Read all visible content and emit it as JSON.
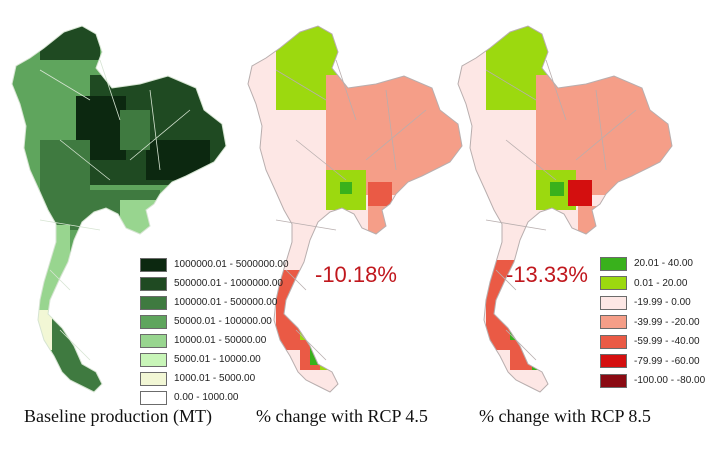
{
  "maps": [
    {
      "id": "baseline",
      "caption": "Baseline production (MT)"
    },
    {
      "id": "rcp45",
      "caption": "% change with RCP 4.5",
      "overall_change": "-10.18%"
    },
    {
      "id": "rcp85",
      "caption": "% change with RCP 8.5",
      "overall_change": "-13.33%"
    }
  ],
  "baseline_legend": [
    {
      "label": "1000000.01 - 5000000.00",
      "color": "#0c2810"
    },
    {
      "label": "500000.01 - 1000000.00",
      "color": "#1f4a22"
    },
    {
      "label": "100000.01 - 500000.00",
      "color": "#3f7a40"
    },
    {
      "label": "50000.01 - 100000.00",
      "color": "#5fa55d"
    },
    {
      "label": "10000.01 - 50000.00",
      "color": "#98d58f"
    },
    {
      "label": "5000.01 - 10000.00",
      "color": "#c8f5b8"
    },
    {
      "label": "1000.01 - 5000.00",
      "color": "#f2f7d5"
    },
    {
      "label": "0.00 - 1000.00",
      "color": "#ffffff"
    }
  ],
  "change_legend": [
    {
      "label": "20.01 - 40.00",
      "color": "#39b11c"
    },
    {
      "label": "0.01 - 20.00",
      "color": "#9cd90f"
    },
    {
      "label": "-19.99 - 0.00",
      "color": "#fde7e5"
    },
    {
      "label": "-39.99 - -20.00",
      "color": "#f59e88"
    },
    {
      "label": "-59.99 - -40.00",
      "color": "#ea5a45"
    },
    {
      "label": "-79.99 - -60.00",
      "color": "#d40f0f"
    },
    {
      "label": "-100.00 - -80.00",
      "color": "#8a0a12"
    }
  ]
}
